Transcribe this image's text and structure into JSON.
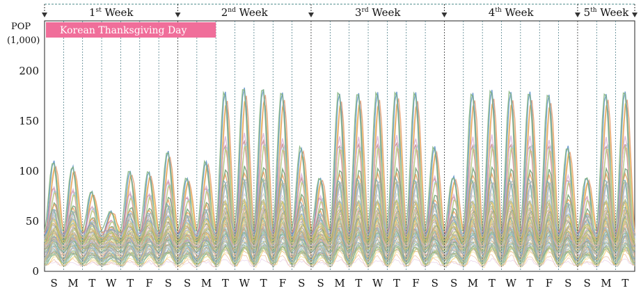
{
  "chart_data": {
    "type": "line",
    "title": "",
    "ylabel": "POP",
    "ylabel_unit": "(1,000)",
    "xlabel": "",
    "ylim": [
      0,
      200
    ],
    "yticks": [
      0,
      50,
      100,
      150,
      200
    ],
    "day_labels": [
      "S",
      "M",
      "T",
      "W",
      "T",
      "F",
      "S",
      "S",
      "M",
      "T",
      "W",
      "T",
      "F",
      "S",
      "S",
      "M",
      "T",
      "W",
      "T",
      "F",
      "S",
      "S",
      "M",
      "T",
      "W",
      "T",
      "F",
      "S",
      "S",
      "M",
      "T"
    ],
    "weeks": [
      {
        "num": "1",
        "suffix": "st",
        "word": "Week",
        "start_day": 0,
        "end_day": 7
      },
      {
        "num": "2",
        "suffix": "nd",
        "word": "Week",
        "start_day": 7,
        "end_day": 14
      },
      {
        "num": "3",
        "suffix": "rd",
        "word": "Week",
        "start_day": 14,
        "end_day": 21
      },
      {
        "num": "4",
        "suffix": "th",
        "word": "Week",
        "start_day": 21,
        "end_day": 28
      },
      {
        "num": "5",
        "suffix": "th",
        "word": "Week",
        "start_day": 28,
        "end_day": 31
      }
    ],
    "holiday": {
      "label": "Korean Thanksgiving Day",
      "start_day": 0,
      "end_day": 9,
      "color": "#f06e9a"
    },
    "daily_peak_top_series": [
      110,
      105,
      80,
      60,
      100,
      100,
      120,
      95,
      110,
      180,
      185,
      185,
      180,
      125,
      95,
      180,
      180,
      180,
      182,
      180,
      125,
      95,
      180,
      182,
      182,
      180,
      178,
      125,
      95,
      180,
      182
    ],
    "series_count": 120,
    "series_colors": [
      "#f2c94c",
      "#e39a6b",
      "#5b8fc9",
      "#7fb27a",
      "#c98a8a",
      "#8fd0c9",
      "#a7c77a",
      "#d9b3d9",
      "#6d9e6d",
      "#c9c97a",
      "#9ab8e0",
      "#e8a060",
      "#79a8b5",
      "#b0b0b0",
      "#e2d36b"
    ]
  }
}
